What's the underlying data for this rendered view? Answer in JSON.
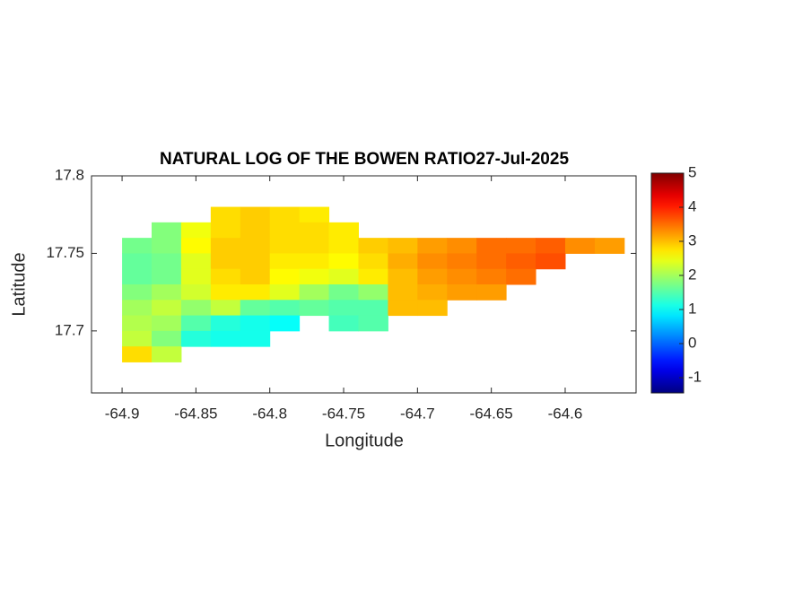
{
  "chart_data": {
    "type": "heatmap",
    "title": "NATURAL LOG OF THE BOWEN RATIO27-Jul-2025",
    "xlabel": "Longitude",
    "ylabel": "Latitude",
    "x": [
      -64.89,
      -64.87,
      -64.85,
      -64.83,
      -64.81,
      -64.79,
      -64.77,
      -64.75,
      -64.73,
      -64.71,
      -64.69,
      -64.67,
      -64.65,
      -64.63,
      -64.61,
      -64.59,
      -64.57
    ],
    "y": [
      17.775,
      17.765,
      17.755,
      17.745,
      17.735,
      17.725,
      17.715,
      17.705,
      17.695,
      17.685
    ],
    "z": [
      [
        null,
        null,
        null,
        2.8,
        2.9,
        2.8,
        2.7,
        null,
        null,
        null,
        null,
        null,
        null,
        null,
        null,
        null,
        null
      ],
      [
        null,
        1.8,
        2.5,
        2.8,
        2.9,
        2.8,
        2.8,
        2.7,
        null,
        null,
        null,
        null,
        null,
        null,
        null,
        null,
        null
      ],
      [
        1.7,
        1.8,
        2.6,
        2.9,
        2.9,
        2.8,
        2.8,
        2.7,
        2.9,
        3.0,
        3.2,
        3.3,
        3.5,
        3.5,
        3.6,
        3.3,
        3.2
      ],
      [
        1.6,
        1.7,
        2.4,
        2.9,
        2.9,
        2.7,
        2.7,
        2.6,
        2.8,
        3.1,
        3.3,
        3.4,
        3.5,
        3.6,
        3.7,
        null,
        null
      ],
      [
        1.6,
        1.7,
        2.4,
        2.8,
        2.9,
        2.6,
        2.5,
        2.4,
        2.7,
        3.0,
        3.2,
        3.3,
        3.4,
        3.5,
        null,
        null,
        null
      ],
      [
        1.8,
        2.0,
        2.3,
        2.7,
        2.7,
        2.4,
        2.0,
        1.7,
        1.9,
        3.0,
        3.1,
        3.2,
        3.2,
        null,
        null,
        null,
        null
      ],
      [
        2.0,
        2.2,
        1.9,
        2.2,
        1.6,
        1.5,
        1.6,
        1.5,
        1.5,
        3.0,
        3.0,
        null,
        null,
        null,
        null,
        null,
        null
      ],
      [
        2.1,
        2.0,
        1.5,
        1.2,
        1.1,
        1.0,
        null,
        1.4,
        1.5,
        null,
        null,
        null,
        null,
        null,
        null,
        null,
        null
      ],
      [
        2.2,
        1.8,
        1.2,
        1.1,
        1.1,
        null,
        null,
        null,
        null,
        null,
        null,
        null,
        null,
        null,
        null,
        null,
        null
      ],
      [
        2.8,
        2.2,
        null,
        null,
        null,
        null,
        null,
        null,
        null,
        null,
        null,
        null,
        null,
        null,
        null,
        null,
        null
      ]
    ],
    "xlim": [
      -64.9207,
      -64.552
    ],
    "ylim": [
      17.66,
      17.8
    ],
    "xticks": [
      -64.9,
      -64.85,
      -64.8,
      -64.75,
      -64.7,
      -64.65,
      -64.6
    ],
    "yticks": [
      17.7,
      17.75,
      17.8
    ],
    "clim": [
      -1.447,
      5
    ],
    "cticks": [
      -1,
      0,
      1,
      2,
      3,
      4,
      5
    ],
    "colormap": "jet"
  }
}
